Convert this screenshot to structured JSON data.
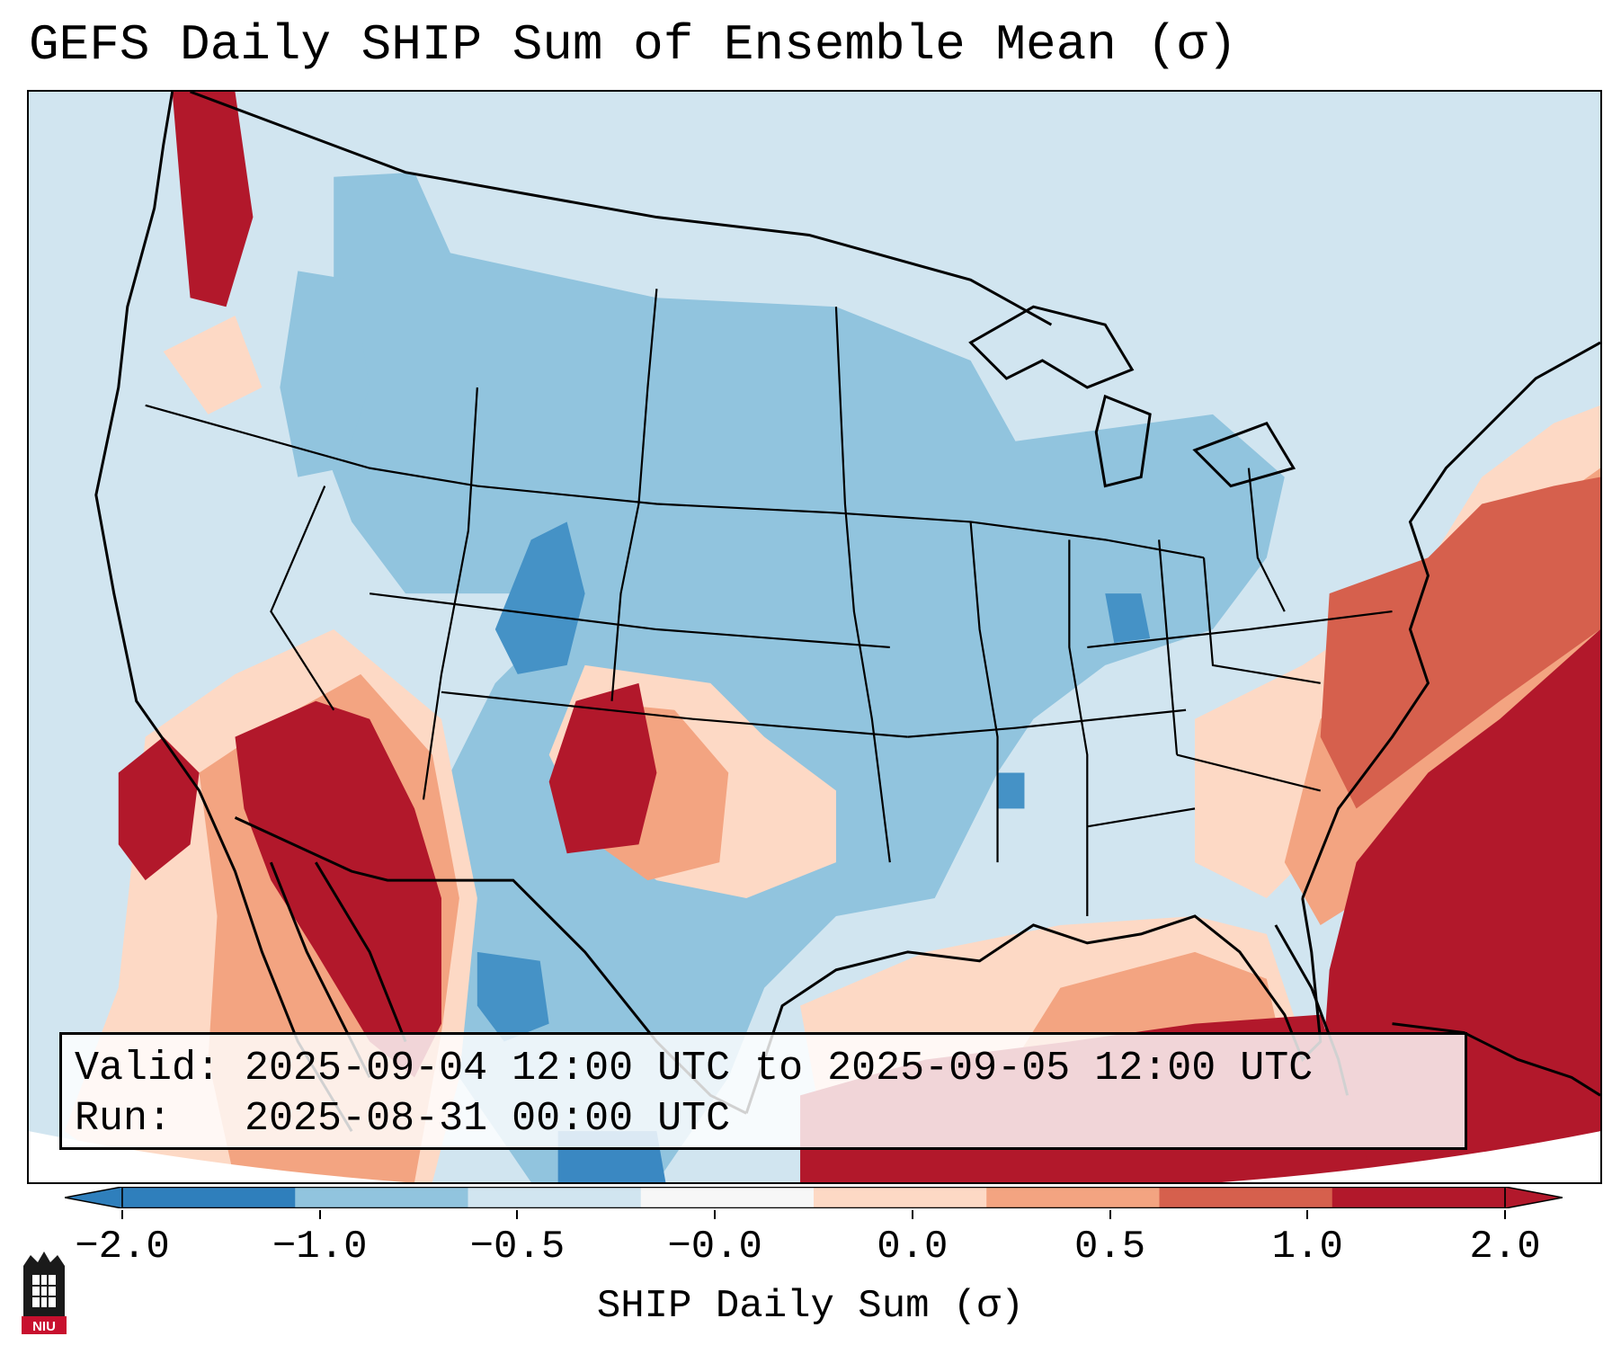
{
  "title": "GEFS Daily SHIP Sum of Ensemble Mean (σ)",
  "info": {
    "valid_label": "Valid:",
    "valid_value": "2025-09-04 12:00 UTC to 2025-09-05 12:00 UTC",
    "run_label": "Run:",
    "run_value": "2025-08-31 00:00 UTC"
  },
  "colorbar": {
    "label": "SHIP Daily Sum (σ)",
    "ticks": [
      "−2.0",
      "−1.0",
      "−0.5",
      "−0.0",
      "0.0",
      "0.5",
      "1.0",
      "2.0"
    ],
    "colors": [
      "#2f7fbc",
      "#91c4de",
      "#d1e5f0",
      "#f7f7f7",
      "#fdd9c5",
      "#f3a481",
      "#d6604d",
      "#b2182b"
    ],
    "extend": "both"
  },
  "map": {
    "region": "CONUS",
    "colors": {
      "strong_neg": "#2f7fbc",
      "neg": "#91c4de",
      "weak_neg": "#d1e5f0",
      "weak_pos": "#fdd9c5",
      "pos": "#f3a481",
      "strong_pos_mid": "#d6604d",
      "strong_pos": "#b2182b",
      "state_lines": "#000000"
    }
  },
  "logo": {
    "text": "NIU"
  }
}
